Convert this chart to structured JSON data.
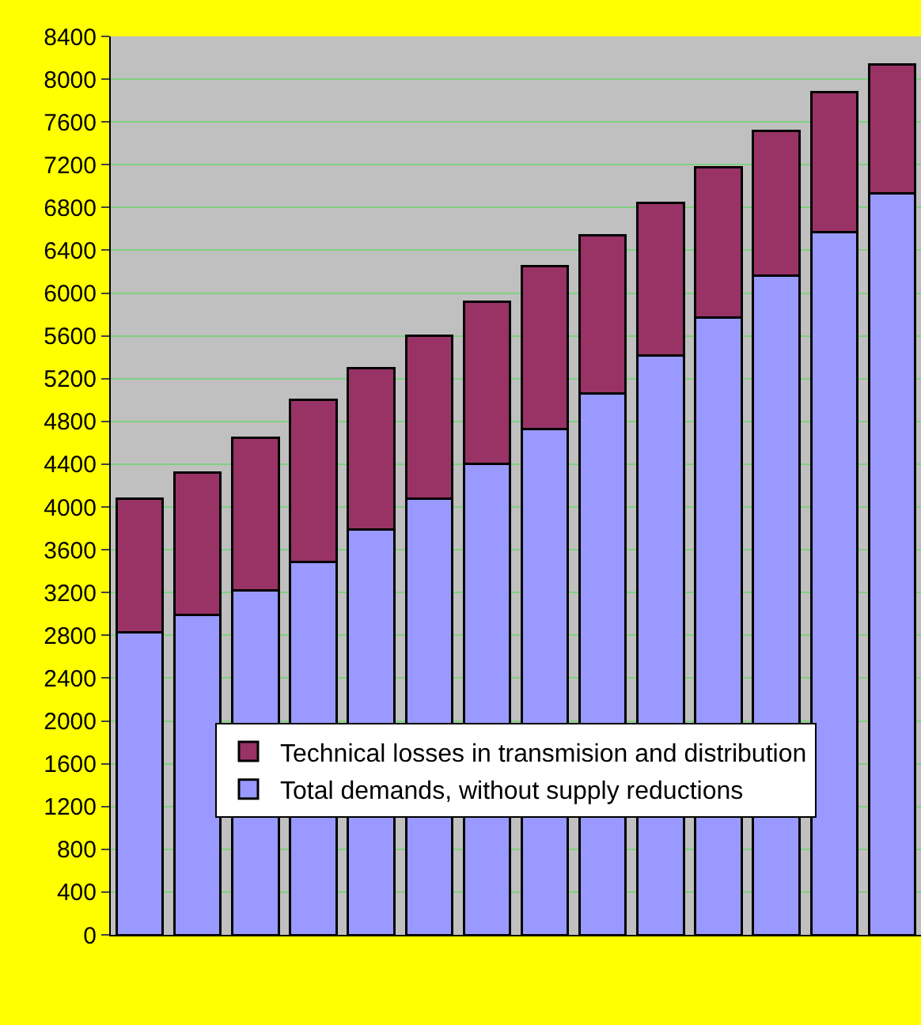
{
  "chart_data": {
    "type": "bar",
    "stacked": true,
    "categories": [
      null,
      null,
      null,
      null,
      null,
      null,
      null,
      null,
      null,
      null,
      null,
      null,
      null,
      null
    ],
    "series": [
      {
        "name": "Total demands, without supply reductions",
        "color": "#9999ff",
        "values": [
          2830,
          2990,
          3220,
          3490,
          3790,
          4080,
          4400,
          4730,
          5060,
          5420,
          5770,
          6160,
          6570,
          6930
        ]
      },
      {
        "name": "Technical losses in transmision and distribution",
        "color": "#993366",
        "values": [
          1250,
          1330,
          1430,
          1510,
          1510,
          1520,
          1520,
          1520,
          1480,
          1420,
          1410,
          1360,
          1310,
          1210
        ]
      }
    ],
    "ylim": [
      0,
      8400
    ],
    "yticks": [
      0,
      400,
      800,
      1200,
      1600,
      2000,
      2400,
      2800,
      3200,
      3600,
      4000,
      4400,
      4800,
      5200,
      5600,
      6000,
      6400,
      6800,
      7200,
      7600,
      8000,
      8400
    ],
    "grid": "y",
    "legend": "bottom"
  }
}
